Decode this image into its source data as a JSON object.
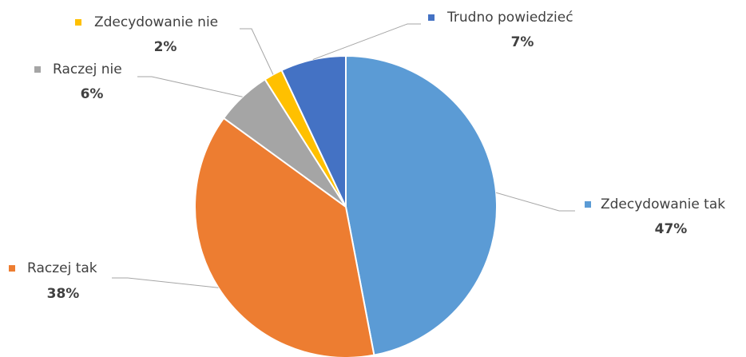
{
  "chart_data": {
    "type": "pie",
    "categories": [
      "Zdecydowanie tak",
      "Raczej tak",
      "Raczej nie",
      "Zdecydowanie nie",
      "Trudno powiedzieć"
    ],
    "values": [
      47,
      38,
      6,
      2,
      7
    ],
    "value_labels": [
      "47%",
      "38%",
      "6%",
      "2%",
      "7%"
    ],
    "colors": [
      "#5b9bd5",
      "#ed7d31",
      "#a5a5a5",
      "#ffc000",
      "#4472c4"
    ]
  }
}
